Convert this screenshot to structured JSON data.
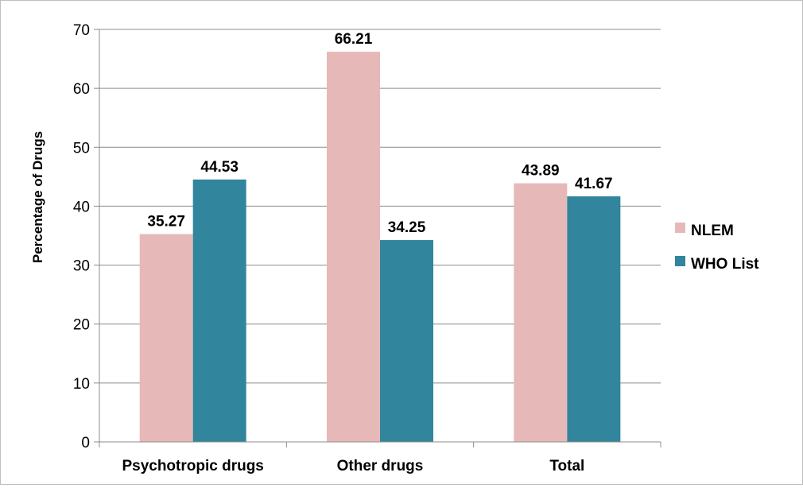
{
  "chart_data": {
    "type": "bar",
    "categories": [
      "Psychotropic drugs",
      "Other drugs",
      "Total"
    ],
    "series": [
      {
        "name": "NLEM",
        "values": [
          35.27,
          66.21,
          43.89
        ],
        "color": "#e6b9b8"
      },
      {
        "name": "WHO List",
        "values": [
          44.53,
          34.25,
          41.67
        ],
        "color": "#31859c"
      }
    ],
    "xlabel": "",
    "ylabel": "Percentage of Drugs",
    "ylim": [
      0,
      70
    ],
    "yticks": [
      "0",
      "10",
      "20",
      "30",
      "40",
      "50",
      "60",
      "70"
    ],
    "grid": true,
    "legend_position": "right",
    "data_labels": [
      [
        "35.27",
        "66.21",
        "43.89"
      ],
      [
        "44.53",
        "34.25",
        "41.67"
      ]
    ]
  }
}
